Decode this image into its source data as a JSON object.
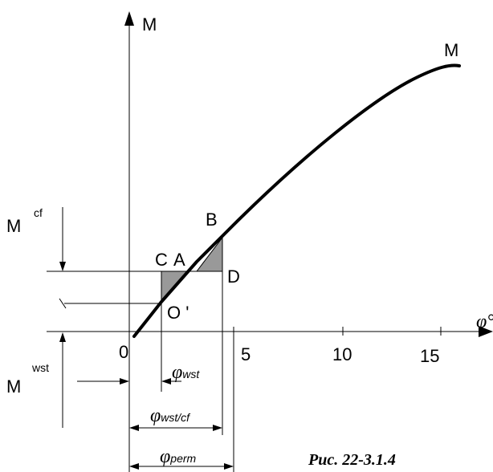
{
  "axes": {
    "y_label": "M",
    "x_label": "φ°",
    "origin_label": "0",
    "x_ticks": [
      "5",
      "10",
      "15"
    ]
  },
  "curve": {
    "label": "M"
  },
  "points": {
    "A": "A",
    "B": "B",
    "C": "C",
    "D": "D",
    "O": "O '"
  },
  "moments": {
    "cf": {
      "base": "M",
      "sup": "cf"
    },
    "wst": {
      "base": "M",
      "sup": "wst"
    }
  },
  "angles": {
    "wst": {
      "phi": "φ",
      "sub": "wst"
    },
    "wst_cf": {
      "phi": "φ",
      "sub": "wst/cf"
    },
    "perm": {
      "phi": "φ",
      "sub": "perm"
    }
  },
  "caption": "Рис. 22-3.1.4",
  "colors": {
    "line": "#000000",
    "fill": "#999999"
  }
}
